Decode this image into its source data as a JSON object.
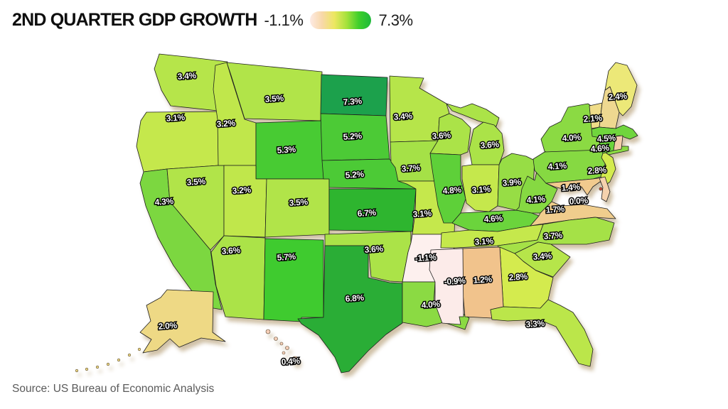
{
  "title": "2ND QUARTER GDP GROWTH",
  "legend": {
    "min_label": "-1.1%",
    "max_label": "7.3%",
    "gradient_colors": [
      "#fdeae4",
      "#f8d8a9",
      "#ece760",
      "#a5e23c",
      "#3ecf2b",
      "#1db93a"
    ]
  },
  "source": "Source: US Bureau of Economic Analysis",
  "chart_data": {
    "type": "choropleth",
    "title": "2ND QUARTER GDP GROWTH",
    "unit": "percent GDP growth by state",
    "scale": {
      "min": -1.1,
      "max": 7.3,
      "min_label": "-1.1%",
      "max_label": "7.3%"
    },
    "states": {
      "WA": {
        "name": "Washington",
        "value": 3.4,
        "label": "3.4%",
        "color": "#b6e54a"
      },
      "OR": {
        "name": "Oregon",
        "value": 3.1,
        "label": "3.1%",
        "color": "#c5e84c"
      },
      "CA": {
        "name": "California",
        "value": 4.3,
        "label": "4.3%",
        "color": "#7cd740"
      },
      "NV": {
        "name": "Nevada",
        "value": 3.5,
        "label": "3.5%",
        "color": "#b1e449"
      },
      "ID": {
        "name": "Idaho",
        "value": 3.2,
        "label": "3.2%",
        "color": "#c0e74b"
      },
      "MT": {
        "name": "Montana",
        "value": 3.5,
        "label": "3.5%",
        "color": "#b1e449"
      },
      "WY": {
        "name": "Wyoming",
        "value": 5.3,
        "label": "5.3%",
        "color": "#48cb33"
      },
      "UT": {
        "name": "Utah",
        "value": 3.2,
        "label": "3.2%",
        "color": "#c0e74b"
      },
      "CO": {
        "name": "Colorado",
        "value": 3.5,
        "label": "3.5%",
        "color": "#b1e449"
      },
      "AZ": {
        "name": "Arizona",
        "value": 3.6,
        "label": "3.6%",
        "color": "#abe348"
      },
      "NM": {
        "name": "New Mexico",
        "value": 5.7,
        "label": "5.7%",
        "color": "#3fcb2f"
      },
      "ND": {
        "name": "North Dakota",
        "value": 7.3,
        "label": "7.3%",
        "color": "#1ca14c"
      },
      "SD": {
        "name": "South Dakota",
        "value": 5.2,
        "label": "5.2%",
        "color": "#4cca36"
      },
      "NE": {
        "name": "Nebraska",
        "value": 5.2,
        "label": "5.2%",
        "color": "#4cca36"
      },
      "KS": {
        "name": "Kansas",
        "value": 6.7,
        "label": "6.7%",
        "color": "#2eb52f"
      },
      "OK": {
        "name": "Oklahoma",
        "value": 3.6,
        "label": "3.6%",
        "color": "#abe348"
      },
      "TX": {
        "name": "Texas",
        "value": 6.8,
        "label": "6.8%",
        "color": "#2aad36"
      },
      "MN": {
        "name": "Minnesota",
        "value": 3.4,
        "label": "3.4%",
        "color": "#b6e54a"
      },
      "IA": {
        "name": "Iowa",
        "value": 3.7,
        "label": "3.7%",
        "color": "#a5e147"
      },
      "MO": {
        "name": "Missouri",
        "value": 3.1,
        "label": "3.1%",
        "color": "#c5e84c"
      },
      "AR": {
        "name": "Arkansas",
        "value": -1.1,
        "label": "-1.1%",
        "color": "#fdf0ee"
      },
      "LA": {
        "name": "Louisiana",
        "value": 4.0,
        "label": "4.0%",
        "color": "#8bda43"
      },
      "WI": {
        "name": "Wisconsin",
        "value": 3.6,
        "label": "3.6%",
        "color": "#abe348"
      },
      "IL": {
        "name": "Illinois",
        "value": 4.8,
        "label": "4.8%",
        "color": "#5ed039"
      },
      "MI": {
        "name": "Michigan",
        "value": 3.6,
        "label": "3.6%",
        "color": "#abe348"
      },
      "IN": {
        "name": "Indiana",
        "value": 3.1,
        "label": "3.1%",
        "color": "#c5e84c"
      },
      "OH": {
        "name": "Ohio",
        "value": 3.9,
        "label": "3.9%",
        "color": "#97dd45"
      },
      "KY": {
        "name": "Kentucky",
        "value": 4.6,
        "label": "4.6%",
        "color": "#6bd43c"
      },
      "TN": {
        "name": "Tennessee",
        "value": 3.1,
        "label": "3.1%",
        "color": "#c5e84c"
      },
      "MS": {
        "name": "Mississippi",
        "value": -0.9,
        "label": "-0.9%",
        "color": "#fcebe9"
      },
      "AL": {
        "name": "Alabama",
        "value": 1.2,
        "label": "1.2%",
        "color": "#f1c38c"
      },
      "GA": {
        "name": "Georgia",
        "value": 2.8,
        "label": "2.8%",
        "color": "#d4eb4e"
      },
      "FL": {
        "name": "Florida",
        "value": 3.3,
        "label": "3.3%",
        "color": "#bbe64a"
      },
      "SC": {
        "name": "South Carolina",
        "value": 3.4,
        "label": "3.4%",
        "color": "#b6e54a"
      },
      "NC": {
        "name": "North Carolina",
        "value": 3.7,
        "label": "3.7%",
        "color": "#a5e147"
      },
      "VA": {
        "name": "Virginia",
        "value": 1.7,
        "label": "1.7%",
        "color": "#f0cd8d"
      },
      "WV": {
        "name": "West Virginia",
        "value": 4.1,
        "label": "4.1%",
        "color": "#86d942"
      },
      "MD": {
        "name": "Maryland",
        "value": 1.4,
        "label": "1.4%",
        "color": "#f1ca8e"
      },
      "DE": {
        "name": "Delaware",
        "value": 0.0,
        "label": "0.0%",
        "color": "#f5d2ad"
      },
      "PA": {
        "name": "Pennsylvania",
        "value": 4.1,
        "label": "4.1%",
        "color": "#86d942"
      },
      "NJ": {
        "name": "New Jersey",
        "value": 2.8,
        "label": "2.8%",
        "color": "#d4eb4e"
      },
      "NY": {
        "name": "New York",
        "value": 4.0,
        "label": "4.0%",
        "color": "#8bda43"
      },
      "VT": {
        "name": "Vermont",
        "value": 2.1,
        "label": "2.1%",
        "color": "#efdc88"
      },
      "NH": {
        "name": "New Hampshire",
        "value": null,
        "label": "",
        "color": "#eed890"
      },
      "ME": {
        "name": "Maine",
        "value": 2.4,
        "label": "2.4%",
        "color": "#ece878"
      },
      "MA": {
        "name": "Massachusetts",
        "value": 4.5,
        "label": "4.5%",
        "color": "#70d53d"
      },
      "CT": {
        "name": "Connecticut",
        "value": 4.6,
        "label": "4.6%",
        "color": "#6bd43c"
      },
      "RI": {
        "name": "Rhode Island",
        "value": null,
        "label": "",
        "color": "#f3cda9"
      },
      "AK": {
        "name": "Alaska",
        "value": 2.0,
        "label": "2.0%",
        "color": "#eed985"
      },
      "HI": {
        "name": "Hawaii",
        "value": 0.4,
        "label": "0.4%",
        "color": "#f6cfb9"
      },
      "DC": {
        "name": "District of Columbia",
        "value": null,
        "label": "",
        "color": "#c0493c"
      }
    }
  }
}
